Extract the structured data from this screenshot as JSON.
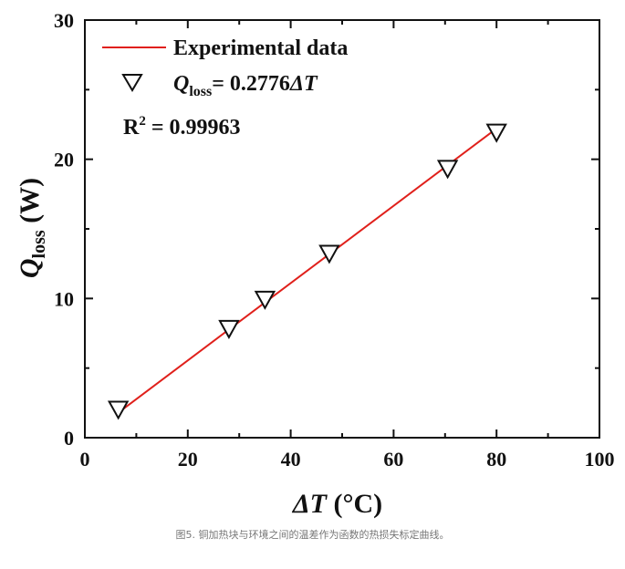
{
  "chart_data": {
    "type": "scatter",
    "xlabel_parts": {
      "symbol": "ΔT",
      "unit": " (°C)"
    },
    "ylabel_parts": {
      "symbol": "Q",
      "subscript": "loss",
      "unit": " (W)"
    },
    "xlim": [
      0,
      100
    ],
    "ylim": [
      0,
      30
    ],
    "x_ticks": [
      "0",
      "20",
      "40",
      "60",
      "80",
      "100"
    ],
    "y_ticks": [
      "0",
      "10",
      "20",
      "30"
    ],
    "grid": false,
    "legend_position": "top-left",
    "series": [
      {
        "name": "Experimental data",
        "kind": "line",
        "color": "#e0201b",
        "x": [
          6.5,
          80
        ],
        "y": [
          1.8,
          22.21
        ]
      },
      {
        "name": "Q_loss= 0.2776ΔT",
        "kind": "markers",
        "marker": "down-triangle",
        "x": [
          6.5,
          28,
          35,
          47.5,
          70.5,
          80
        ],
        "y": [
          2.0,
          7.8,
          9.9,
          13.2,
          19.3,
          21.9
        ]
      }
    ],
    "legend": {
      "line_label": "Experimental data",
      "marker_label_symbol": "Q",
      "marker_label_sub": "loss",
      "marker_label_rest": "= 0.2776",
      "marker_label_var": "ΔT"
    },
    "annotation": {
      "prefix": "R",
      "sup": "2",
      "rest": " = 0.99963"
    }
  },
  "caption": "图5. 铜加热块与环境之间的温差作为函数的热损失标定曲线。"
}
